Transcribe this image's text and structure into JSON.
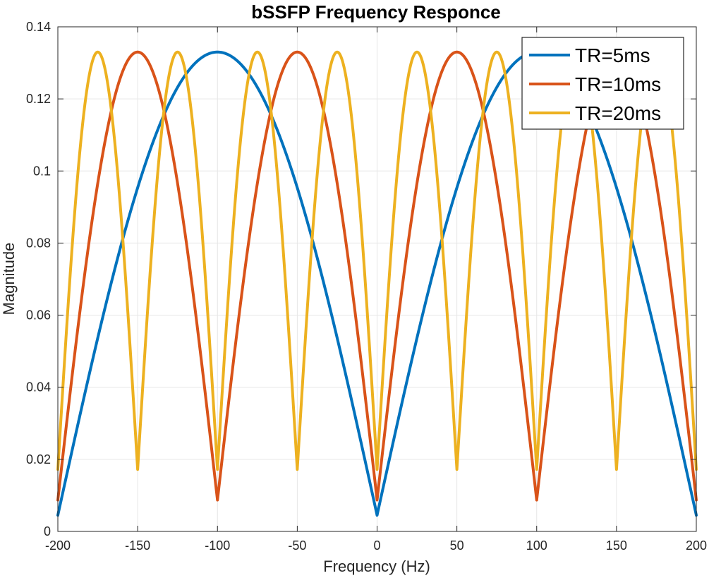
{
  "chart_data": {
    "type": "line",
    "title": "bSSFP Frequency Responce",
    "xlabel": "Frequency (Hz)",
    "ylabel": "Magnitude",
    "xlim": [
      -200,
      200
    ],
    "ylim": [
      0,
      0.14
    ],
    "xticks": [
      -200,
      -150,
      -100,
      -50,
      0,
      50,
      100,
      150,
      200
    ],
    "xtick_labels": [
      "-200",
      "-150",
      "-100",
      "-50",
      "0",
      "50",
      "100",
      "150",
      "200"
    ],
    "yticks": [
      0,
      0.02,
      0.04,
      0.06,
      0.08,
      0.1,
      0.12,
      0.14
    ],
    "ytick_labels": [
      "0",
      "0.02",
      "0.04",
      "0.06",
      "0.08",
      "0.1",
      "0.12",
      "0.14"
    ],
    "grid": true,
    "legend_position": "top-right",
    "series": [
      {
        "name": "TR=5ms",
        "color": "#0072BD",
        "period_hz": 200,
        "peaks_at_hz": [
          -100,
          100
        ],
        "nulls_at_hz": [
          -200,
          0,
          200
        ],
        "peak_value": 0.133,
        "null_value": 0.0045
      },
      {
        "name": "TR=10ms",
        "color": "#D95319",
        "period_hz": 100,
        "peaks_at_hz": [
          -150,
          -50,
          50,
          150
        ],
        "nulls_at_hz": [
          -200,
          -100,
          0,
          100,
          200
        ],
        "peak_value": 0.133,
        "null_value": 0.0087
      },
      {
        "name": "TR=20ms",
        "color": "#EDB120",
        "period_hz": 50,
        "peaks_at_hz": [
          -175,
          -125,
          -75,
          -25,
          25,
          75,
          125,
          175
        ],
        "nulls_at_hz": [
          -200,
          -150,
          -100,
          -50,
          0,
          50,
          100,
          150,
          200
        ],
        "peak_value": 0.133,
        "null_value": 0.0172
      }
    ]
  }
}
